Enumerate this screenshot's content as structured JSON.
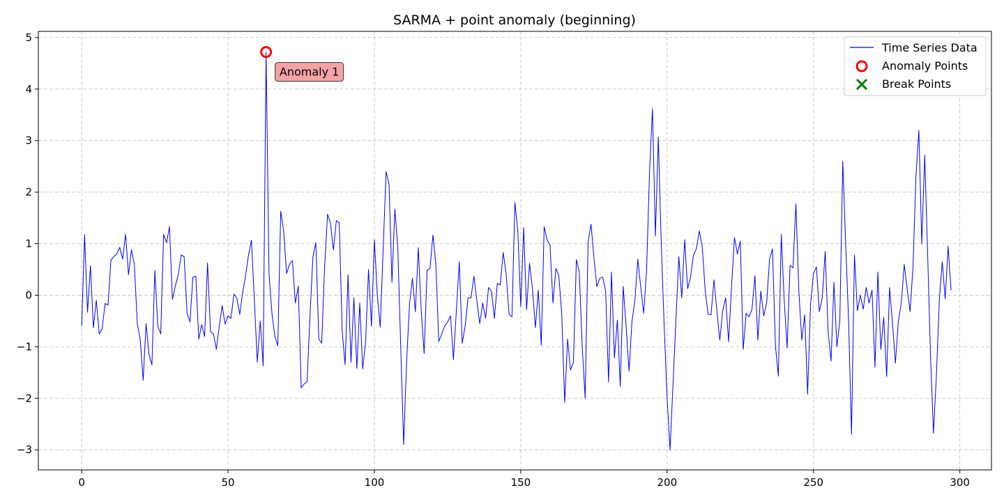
{
  "chart_data": {
    "type": "line",
    "title": "SARMA + point anomaly (beginning)",
    "xlabel": "",
    "ylabel": "",
    "xlim": [
      -14.8,
      310.8
    ],
    "ylim": [
      -3.39,
      5.12
    ],
    "xticks": [
      0,
      50,
      100,
      150,
      200,
      250,
      300
    ],
    "yticks": [
      -3,
      -2,
      -1,
      0,
      1,
      2,
      3,
      4,
      5
    ],
    "grid": true,
    "grid_style": "dashed",
    "legend_position": "top-right",
    "colors": {
      "series": "#0000ff",
      "anomaly": "#ff0000",
      "break": "#008000",
      "annotation_fill": "#f4a3a3"
    },
    "legend": [
      {
        "label": "Time Series Data",
        "marker": "line"
      },
      {
        "label": "Anomaly Points",
        "marker": "circle"
      },
      {
        "label": "Break Points",
        "marker": "x"
      }
    ],
    "series": [
      {
        "name": "Time Series Data",
        "values": [
          -0.6,
          1.18,
          -0.33,
          0.57,
          -0.63,
          -0.1,
          -0.75,
          -0.65,
          -0.16,
          -0.19,
          0.68,
          0.75,
          0.8,
          0.93,
          0.7,
          1.18,
          0.4,
          0.88,
          0.6,
          -0.55,
          -0.85,
          -1.65,
          -0.55,
          -1.15,
          -1.35,
          0.48,
          -0.6,
          -0.75,
          1.18,
          1.02,
          1.33,
          -0.08,
          0.18,
          0.4,
          0.78,
          0.75,
          -0.35,
          -0.52,
          0.35,
          0.37,
          -0.85,
          -0.57,
          -0.8,
          0.63,
          -0.7,
          -0.75,
          -1.05,
          -0.6,
          -0.2,
          -0.56,
          -0.4,
          -0.45,
          0.02,
          -0.05,
          -0.37,
          0.05,
          0.38,
          0.78,
          1.07,
          -0.1,
          -1.3,
          -0.5,
          -1.37,
          4.72,
          0.42,
          -0.35,
          -0.8,
          -0.98,
          1.63,
          1.25,
          0.42,
          0.6,
          0.67,
          -0.15,
          0.18,
          -1.8,
          -1.72,
          -1.68,
          -0.4,
          0.75,
          1.02,
          -0.85,
          -0.93,
          0.55,
          1.57,
          1.4,
          0.88,
          1.45,
          1.4,
          -0.7,
          -1.35,
          0.4,
          -1.3,
          -0.05,
          -1.42,
          -0.15,
          -1.43,
          -0.9,
          0.5,
          -0.6,
          1.08,
          0.0,
          -0.62,
          0.9,
          2.4,
          2.15,
          0.25,
          1.67,
          0.9,
          -1.0,
          -2.9,
          -1.3,
          -0.18,
          0.33,
          -0.32,
          0.92,
          -0.3,
          -1.13,
          0.48,
          0.52,
          1.17,
          0.6,
          -0.9,
          -0.75,
          -0.6,
          -0.52,
          -0.4,
          -1.25,
          -0.3,
          0.65,
          -0.93,
          -0.6,
          -0.05,
          -0.05,
          0.37,
          -0.1,
          -0.55,
          -0.15,
          -0.45,
          0.15,
          0.08,
          -0.45,
          0.23,
          0.2,
          0.83,
          0.42,
          -0.37,
          -0.42,
          1.8,
          1.25,
          -0.22,
          1.31,
          -0.28,
          0.62,
          0.13,
          -0.63,
          0.1,
          -0.97,
          1.33,
          1.07,
          0.98,
          -0.15,
          0.52,
          0.38,
          -0.35,
          -2.08,
          -0.85,
          -1.45,
          -1.3,
          0.69,
          0.45,
          -1.0,
          -2.0,
          1.03,
          1.38,
          0.73,
          0.17,
          0.33,
          0.35,
          0.08,
          -1.68,
          0.45,
          -1.22,
          -0.48,
          -1.77,
          0.17,
          -0.6,
          -1.47,
          -0.5,
          -0.1,
          0.7,
          0.15,
          -0.35,
          0.5,
          2.4,
          3.62,
          1.15,
          3.07,
          1.0,
          -0.6,
          -2.0,
          -3.0,
          -1.75,
          -0.5,
          0.75,
          -0.05,
          1.08,
          0.13,
          0.35,
          0.78,
          0.9,
          1.25,
          0.95,
          0.1,
          -0.37,
          -0.38,
          0.3,
          -0.3,
          -0.87,
          -0.3,
          -0.05,
          -0.9,
          0.15,
          1.12,
          0.8,
          1.05,
          -1.05,
          -0.35,
          -0.42,
          -0.27,
          0.38,
          -0.87,
          0.08,
          -0.4,
          -0.15,
          0.7,
          0.9,
          -0.98,
          -1.57,
          1.18,
          -0.1,
          -1.02,
          0.58,
          0.53,
          1.77,
          0.08,
          -0.87,
          -0.38,
          -1.92,
          -0.18,
          0.42,
          0.55,
          -0.32,
          -0.05,
          0.85,
          -0.7,
          -1.28,
          0.25,
          -1.0,
          -0.5,
          2.6,
          1.0,
          -0.5,
          -2.7,
          0.78,
          -0.3,
          0.0,
          -0.27,
          0.15,
          -0.15,
          0.1,
          -1.4,
          0.45,
          -1.05,
          -0.43,
          -1.58,
          0.15,
          -0.55,
          -1.32,
          -0.5,
          -0.15,
          0.6,
          0.13,
          -0.32,
          0.55,
          2.3,
          3.2,
          1.0,
          2.72,
          0.8,
          -1.2,
          -2.68,
          -1.55,
          -0.08,
          0.65,
          -0.07,
          0.95,
          0.1
        ]
      }
    ],
    "anomalies": [
      {
        "x": 63,
        "y": 4.72,
        "label": "Anomaly 1"
      }
    ],
    "break_points": []
  }
}
